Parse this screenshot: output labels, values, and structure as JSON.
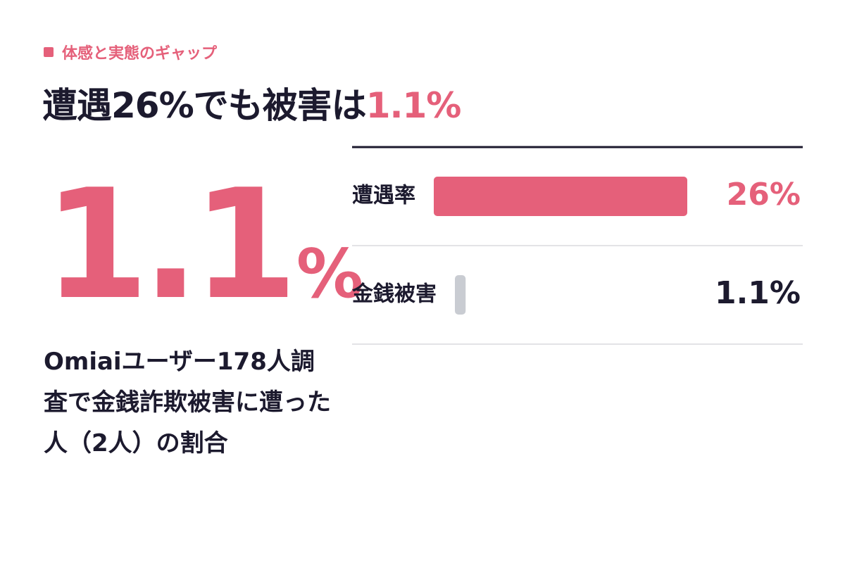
{
  "eyebrow": "体感と実態のギャップ",
  "title": [
    "遭遇26%でも被害は",
    "1.1%"
  ],
  "highlight": {
    "number": "1.1",
    "unit": "%"
  },
  "description": "Omiaiユーザー178人調査で金銭詐欺被害に遭った人（2人）の割合",
  "chart_data": {
    "type": "bar",
    "orientation": "horizontal",
    "categories": [
      "遭遇率",
      "金銭被害"
    ],
    "values": [
      26,
      1.1
    ],
    "value_labels": [
      "26%",
      "1.1%"
    ],
    "colors": [
      "#e5607a",
      "#c9ccd2"
    ],
    "label_colors": [
      "#e5607a",
      "#1c1a2e"
    ]
  }
}
